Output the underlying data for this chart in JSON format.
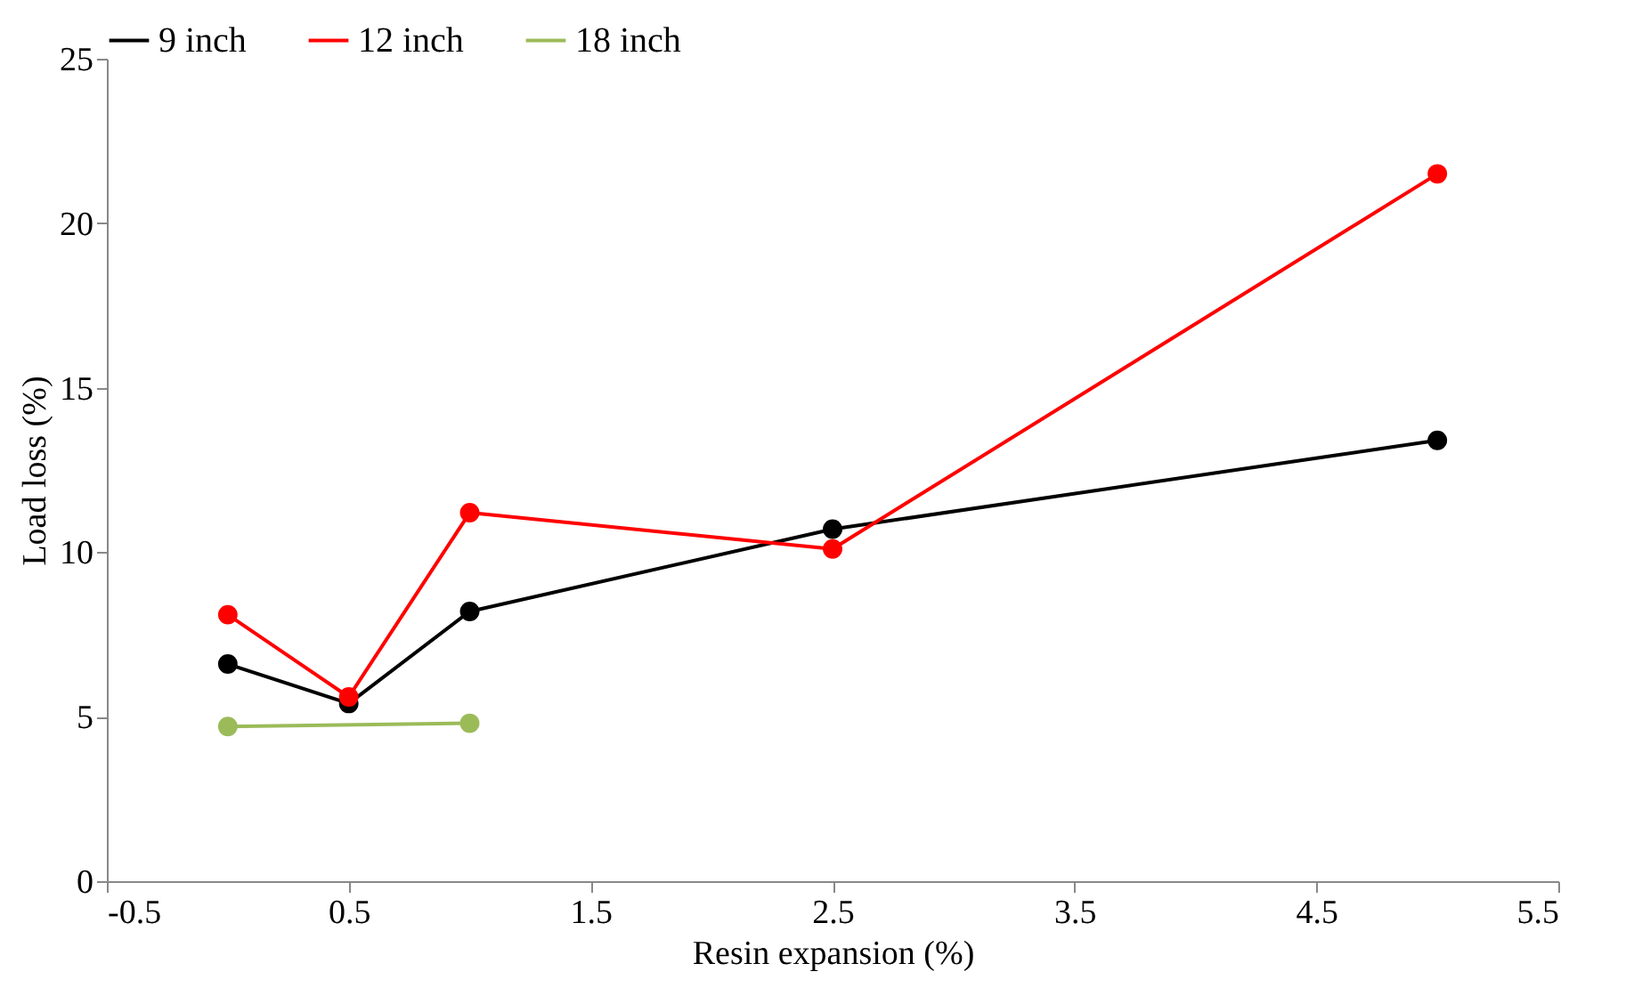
{
  "chart_data": {
    "type": "line",
    "xlabel": "Resin expansion (%)",
    "ylabel": "Load loss (%)",
    "xlim": [
      -0.5,
      5.5
    ],
    "xticks": [
      -0.5,
      0.5,
      1.5,
      2.5,
      3.5,
      4.5,
      5.5
    ],
    "ylim": [
      0,
      25
    ],
    "yticks": [
      0,
      5,
      10,
      15,
      20,
      25
    ],
    "grid": false,
    "legend": "top",
    "marker": "circle",
    "line_style": "solid",
    "series": [
      {
        "name": "9 inch",
        "color": "#000000",
        "x": [
          0,
          0.5,
          1,
          2.5,
          5
        ],
        "values": [
          6.6,
          5.4,
          8.2,
          10.7,
          13.4
        ]
      },
      {
        "name": "12 inch",
        "color": "#ff0000",
        "x": [
          0,
          0.5,
          1,
          2.5,
          5
        ],
        "values": [
          8.1,
          5.6,
          11.2,
          10.1,
          21.5
        ]
      },
      {
        "name": "18 inch",
        "color": "#9bbb59",
        "x": [
          0,
          1
        ],
        "values": [
          4.7,
          4.8
        ]
      }
    ]
  }
}
